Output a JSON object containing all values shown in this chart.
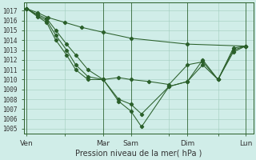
{
  "xlabel": "Pression niveau de la mer( hPa )",
  "background_color": "#d0ede8",
  "grid_color": "#a0ccbe",
  "line_color": "#2a5f2a",
  "ylim": [
    1004.5,
    1017.8
  ],
  "xlim": [
    -2,
    148
  ],
  "yticks": [
    1005,
    1006,
    1007,
    1008,
    1009,
    1010,
    1011,
    1012,
    1013,
    1014,
    1015,
    1016,
    1017
  ],
  "xtick_labels": [
    "Ven",
    "",
    "Mar",
    "Sam",
    "",
    "Dim",
    "",
    "Lun"
  ],
  "xtick_positions": [
    0,
    25,
    50,
    68,
    93,
    105,
    125,
    143
  ],
  "vlines": [
    0,
    50,
    68,
    105,
    143
  ],
  "series": [
    {
      "x": [
        0,
        7,
        14,
        25,
        36,
        50,
        68,
        105,
        143
      ],
      "y": [
        1017.2,
        1016.8,
        1016.3,
        1015.8,
        1015.3,
        1014.8,
        1014.2,
        1013.6,
        1013.4
      ]
    },
    {
      "x": [
        0,
        7,
        13,
        19,
        26,
        32,
        40,
        50,
        60,
        68,
        80,
        93,
        105,
        115,
        125,
        135,
        143
      ],
      "y": [
        1017.2,
        1016.6,
        1016.2,
        1015.0,
        1013.6,
        1012.5,
        1011.0,
        1010.0,
        1010.2,
        1010.0,
        1009.8,
        1009.5,
        1011.5,
        1011.8,
        1010.0,
        1013.2,
        1013.4
      ]
    },
    {
      "x": [
        0,
        7,
        13,
        19,
        26,
        32,
        40,
        50,
        60,
        68,
        75,
        93,
        105,
        115,
        125,
        135,
        143
      ],
      "y": [
        1017.2,
        1016.5,
        1016.0,
        1014.5,
        1013.0,
        1011.5,
        1010.3,
        1010.0,
        1008.0,
        1007.5,
        1006.5,
        1009.3,
        1009.8,
        1011.5,
        1010.0,
        1012.8,
        1013.4
      ]
    },
    {
      "x": [
        0,
        7,
        13,
        19,
        26,
        32,
        40,
        50,
        60,
        68,
        75,
        93,
        105,
        115,
        125,
        135,
        143
      ],
      "y": [
        1017.2,
        1016.4,
        1015.8,
        1014.0,
        1012.5,
        1011.0,
        1010.0,
        1010.0,
        1007.8,
        1006.8,
        1005.2,
        1009.3,
        1009.8,
        1012.0,
        1010.0,
        1013.0,
        1013.4
      ]
    }
  ],
  "ytick_fontsize": 5.5,
  "xtick_fontsize": 6.5,
  "xlabel_fontsize": 7.0
}
